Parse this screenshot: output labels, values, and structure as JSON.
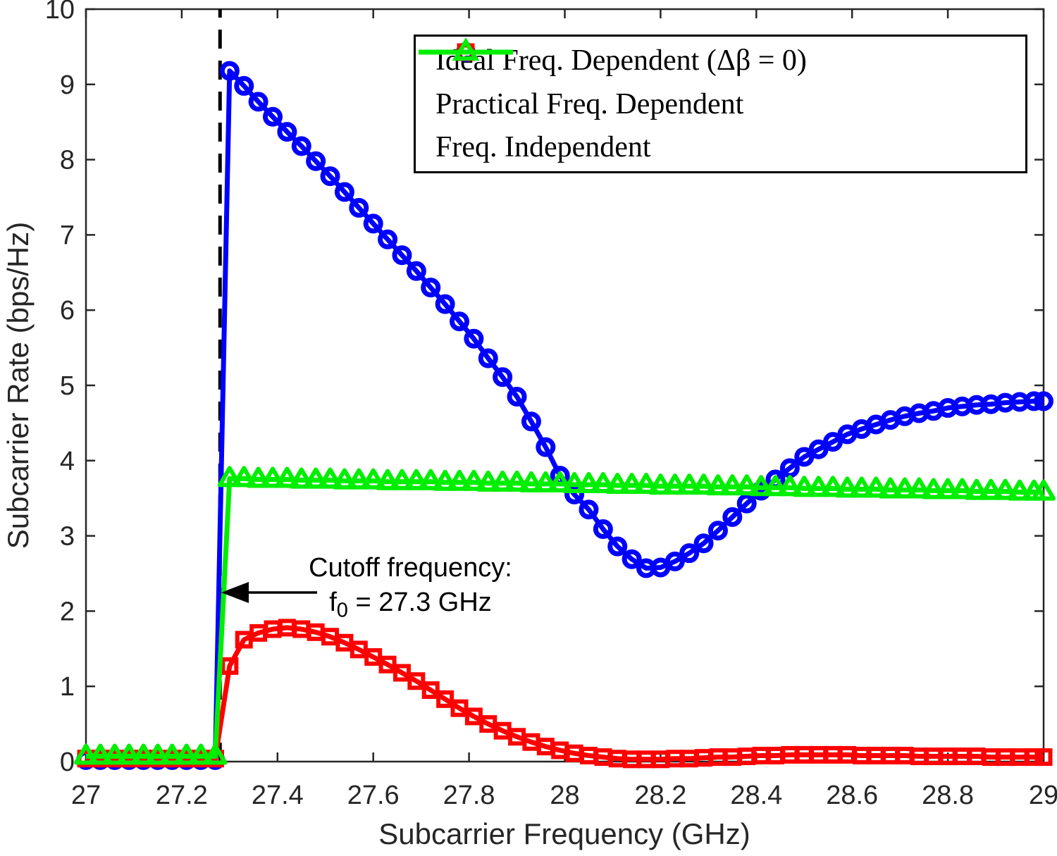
{
  "chart_data": {
    "type": "line",
    "title": "",
    "xlabel": "Subcarrier Frequency (GHz)",
    "ylabel": "Subcarrier Rate (bps/Hz)",
    "xlim": [
      27,
      29
    ],
    "ylim": [
      0,
      10
    ],
    "grid": false,
    "legend_position": "top-right-inside",
    "xticks": [
      27,
      27.2,
      27.4,
      27.6,
      27.8,
      28,
      28.2,
      28.4,
      28.6,
      28.8,
      29
    ],
    "xtick_labels": [
      "27",
      "27.2",
      "27.4",
      "27.6",
      "27.8",
      "28",
      "28.2",
      "28.4",
      "28.6",
      "28.8",
      "29"
    ],
    "yticks": [
      0,
      1,
      2,
      3,
      4,
      5,
      6,
      7,
      8,
      9,
      10
    ],
    "ytick_labels": [
      "0",
      "1",
      "2",
      "3",
      "4",
      "5",
      "6",
      "7",
      "8",
      "9",
      "10"
    ],
    "x": [
      27.0,
      27.03,
      27.06,
      27.09,
      27.12,
      27.15,
      27.18,
      27.21,
      27.24,
      27.27,
      27.3,
      27.33,
      27.36,
      27.39,
      27.42,
      27.45,
      27.48,
      27.51,
      27.54,
      27.57,
      27.6,
      27.63,
      27.66,
      27.69,
      27.72,
      27.75,
      27.78,
      27.81,
      27.84,
      27.87,
      27.9,
      27.93,
      27.96,
      27.99,
      28.02,
      28.05,
      28.08,
      28.11,
      28.14,
      28.17,
      28.2,
      28.23,
      28.26,
      28.29,
      28.32,
      28.35,
      28.38,
      28.41,
      28.44,
      28.47,
      28.5,
      28.53,
      28.56,
      28.59,
      28.62,
      28.65,
      28.68,
      28.71,
      28.74,
      28.77,
      28.8,
      28.83,
      28.86,
      28.89,
      28.92,
      28.95,
      28.98,
      29.0
    ],
    "series": [
      {
        "name": "Ideal Freq. Dependent (Δβ = 0)",
        "color": "#0000ff",
        "marker": "circle",
        "line_width": 7,
        "values": [
          0.02,
          0.02,
          0.02,
          0.02,
          0.02,
          0.02,
          0.02,
          0.02,
          0.02,
          0.02,
          9.18,
          8.98,
          8.77,
          8.57,
          8.37,
          8.18,
          7.98,
          7.78,
          7.57,
          7.36,
          7.15,
          6.94,
          6.73,
          6.52,
          6.3,
          6.08,
          5.85,
          5.62,
          5.36,
          5.11,
          4.85,
          4.52,
          4.18,
          3.8,
          3.55,
          3.35,
          3.09,
          2.86,
          2.69,
          2.57,
          2.58,
          2.66,
          2.77,
          2.9,
          3.07,
          3.25,
          3.43,
          3.6,
          3.75,
          3.9,
          4.05,
          4.15,
          4.25,
          4.35,
          4.42,
          4.48,
          4.54,
          4.59,
          4.63,
          4.66,
          4.7,
          4.72,
          4.74,
          4.75,
          4.77,
          4.78,
          4.79,
          4.79
        ]
      },
      {
        "name": "Practical Freq. Dependent",
        "color": "#ff0000",
        "marker": "square",
        "line_width": 7,
        "values": [
          0.04,
          0.04,
          0.04,
          0.04,
          0.04,
          0.04,
          0.04,
          0.04,
          0.04,
          0.04,
          1.27,
          1.62,
          1.71,
          1.76,
          1.78,
          1.76,
          1.72,
          1.66,
          1.58,
          1.49,
          1.39,
          1.29,
          1.18,
          1.07,
          0.95,
          0.83,
          0.71,
          0.6,
          0.5,
          0.41,
          0.33,
          0.26,
          0.2,
          0.15,
          0.11,
          0.08,
          0.06,
          0.04,
          0.03,
          0.03,
          0.03,
          0.04,
          0.04,
          0.05,
          0.06,
          0.06,
          0.07,
          0.08,
          0.08,
          0.09,
          0.09,
          0.09,
          0.09,
          0.09,
          0.08,
          0.08,
          0.08,
          0.08,
          0.07,
          0.07,
          0.07,
          0.07,
          0.07,
          0.06,
          0.06,
          0.06,
          0.06,
          0.06
        ]
      },
      {
        "name": "Freq. Independent",
        "color": "#00ee00",
        "marker": "triangle",
        "line_width": 7,
        "values": [
          0.07,
          0.07,
          0.07,
          0.07,
          0.07,
          0.07,
          0.07,
          0.07,
          0.07,
          0.07,
          3.76,
          3.76,
          3.75,
          3.75,
          3.75,
          3.74,
          3.74,
          3.74,
          3.73,
          3.73,
          3.73,
          3.72,
          3.72,
          3.72,
          3.72,
          3.71,
          3.71,
          3.71,
          3.7,
          3.7,
          3.7,
          3.69,
          3.69,
          3.69,
          3.68,
          3.68,
          3.68,
          3.67,
          3.67,
          3.67,
          3.66,
          3.66,
          3.66,
          3.66,
          3.65,
          3.65,
          3.65,
          3.64,
          3.64,
          3.64,
          3.63,
          3.63,
          3.63,
          3.62,
          3.62,
          3.62,
          3.61,
          3.61,
          3.61,
          3.6,
          3.6,
          3.6,
          3.59,
          3.59,
          3.59,
          3.58,
          3.58,
          3.58
        ]
      }
    ],
    "cutoff_line": {
      "x": 27.28,
      "style": "dashed",
      "color": "#000000"
    },
    "annotation": {
      "line1": "Cutoff frequency:",
      "f_symbol": "f",
      "f_subscript": "0",
      "value_text": " = 27.3 GHz",
      "arrow_points_to_x": 27.28,
      "arrow_points_to_y": 2.25
    }
  }
}
